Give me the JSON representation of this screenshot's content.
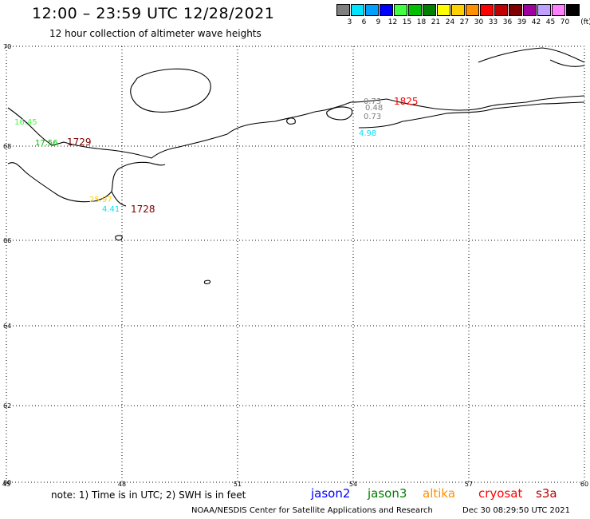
{
  "header": {
    "title": "12:00 – 23:59 UTC 12/28/2021",
    "subtitle": "12 hour collection of altimeter wave heights"
  },
  "legend": {
    "unit": "(ft)",
    "bins": [
      {
        "label": "3",
        "color": "#7f7f7f"
      },
      {
        "label": "6",
        "color": "#00e5ff"
      },
      {
        "label": "9",
        "color": "#00a0ff"
      },
      {
        "label": "12",
        "color": "#0000ff"
      },
      {
        "label": "15",
        "color": "#40ff40"
      },
      {
        "label": "18",
        "color": "#00c000"
      },
      {
        "label": "21",
        "color": "#008000"
      },
      {
        "label": "24",
        "color": "#ffff00"
      },
      {
        "label": "27",
        "color": "#ffd000"
      },
      {
        "label": "30",
        "color": "#ff9000"
      },
      {
        "label": "33",
        "color": "#ff0000"
      },
      {
        "label": "36",
        "color": "#c00000"
      },
      {
        "label": "39",
        "color": "#800000"
      },
      {
        "label": "42",
        "color": "#a000a0"
      },
      {
        "label": "45",
        "color": "#c0a0ff"
      },
      {
        "label": "70",
        "color": "#ff80ff"
      },
      {
        "label": "",
        "color": "#000000"
      }
    ]
  },
  "axes": {
    "lat_ticks": [
      "70",
      "68",
      "66",
      "64",
      "62",
      "60"
    ],
    "lon_ticks": [
      "45",
      "48",
      "51",
      "54",
      "57",
      "60"
    ]
  },
  "observations": [
    {
      "text": "16.45",
      "color": "#40ff40"
    },
    {
      "text": "17.56",
      "color": "#00c000"
    },
    {
      "text": "1729",
      "color": "#800000"
    },
    {
      "text": "25.97",
      "color": "#ffd000"
    },
    {
      "text": "4.41",
      "color": "#00e5ff"
    },
    {
      "text": "1728",
      "color": "#800000"
    },
    {
      "text": "0.73",
      "color": "#7f7f7f"
    },
    {
      "text": "0.48",
      "color": "#7f7f7f"
    },
    {
      "text": "0.73",
      "color": "#7f7f7f"
    },
    {
      "text": "1825",
      "color": "#ff0000"
    },
    {
      "text": "4.98",
      "color": "#00e5ff"
    }
  ],
  "footer": {
    "note": "note: 1) Time is in UTC; 2) SWH is in feet",
    "satellites": [
      {
        "name": "jason2",
        "color": "#0000ff"
      },
      {
        "name": "jason3",
        "color": "#008000"
      },
      {
        "name": "altika",
        "color": "#ff9000"
      },
      {
        "name": "cryosat",
        "color": "#ff0000"
      },
      {
        "name": "s3a",
        "color": "#c00000"
      }
    ],
    "credit": "NOAA/NESDIS Center for Satellite Applications and Research",
    "timestamp": "Dec 30 08:29:50 UTC 2021"
  }
}
